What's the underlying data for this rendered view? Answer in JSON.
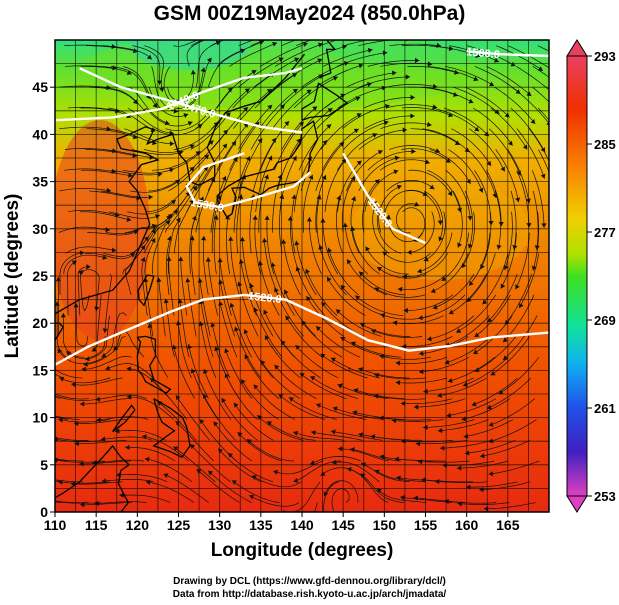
{
  "title": "GSM 00Z19May2024 (850.0hPa)",
  "xaxis": {
    "label": "Longitude (degrees)",
    "ticks": [
      110,
      115,
      120,
      125,
      130,
      135,
      140,
      145,
      150,
      155,
      160,
      165
    ],
    "range": [
      110,
      170
    ]
  },
  "yaxis": {
    "label": "Latitude  (degrees)",
    "ticks": [
      0,
      5,
      10,
      15,
      20,
      25,
      30,
      35,
      40,
      45
    ],
    "range": [
      0,
      50
    ]
  },
  "colorbar": {
    "ticks": [
      293,
      285,
      277,
      269,
      261,
      253
    ],
    "range": [
      253,
      293
    ],
    "colors": [
      "#e040c0",
      "#3030d0",
      "#1070f0",
      "#10c0f0",
      "#10e0a0",
      "#40e020",
      "#a0e000",
      "#f0e000",
      "#f8a000",
      "#f06000",
      "#e82000",
      "#e84060"
    ]
  },
  "contours": [
    {
      "label": "1440.0",
      "points": [
        [
          110,
          41.5
        ],
        [
          117,
          41.8
        ],
        [
          123,
          42.7
        ],
        [
          128,
          44.5
        ],
        [
          133,
          46
        ],
        [
          138,
          46.5
        ],
        [
          140,
          47
        ]
      ]
    },
    {
      "label": "1470.0",
      "points": [
        [
          113,
          47
        ],
        [
          118,
          45
        ],
        [
          125,
          43.3
        ],
        [
          130,
          42
        ],
        [
          135,
          40.8
        ],
        [
          140,
          40.2
        ]
      ]
    },
    {
      "label": "1500.0",
      "points": [
        [
          160,
          48.8
        ],
        [
          164,
          48.5
        ],
        [
          170,
          48.3
        ]
      ]
    },
    {
      "label": "1530.0",
      "points": [
        [
          133,
          38
        ],
        [
          128,
          36.5
        ],
        [
          126,
          34.5
        ],
        [
          127,
          32.8
        ],
        [
          130,
          32.3
        ],
        [
          134,
          33.2
        ],
        [
          139,
          34.5
        ],
        [
          141,
          36
        ]
      ]
    },
    {
      "label": "1520.0",
      "points": [
        [
          110,
          15.6
        ],
        [
          114,
          17.5
        ],
        [
          118,
          19
        ],
        [
          124,
          21.2
        ],
        [
          128,
          22.5
        ],
        [
          133,
          23
        ],
        [
          138,
          22.5
        ],
        [
          143,
          20.5
        ],
        [
          148,
          18.2
        ],
        [
          153,
          17.1
        ],
        [
          158,
          17.6
        ],
        [
          163,
          18.5
        ],
        [
          170,
          19
        ]
      ]
    },
    {
      "label": "1520.0",
      "points": [
        [
          145,
          38
        ],
        [
          148,
          33.5
        ],
        [
          151,
          30
        ],
        [
          155,
          28.5
        ]
      ]
    }
  ],
  "credits": [
    "Drawing by DCL (https://www.gfd-dennou.org/library/dcl/)",
    "Data from http://database.rish.kyoto-u.ac.jp/arch/jmadata/"
  ]
}
